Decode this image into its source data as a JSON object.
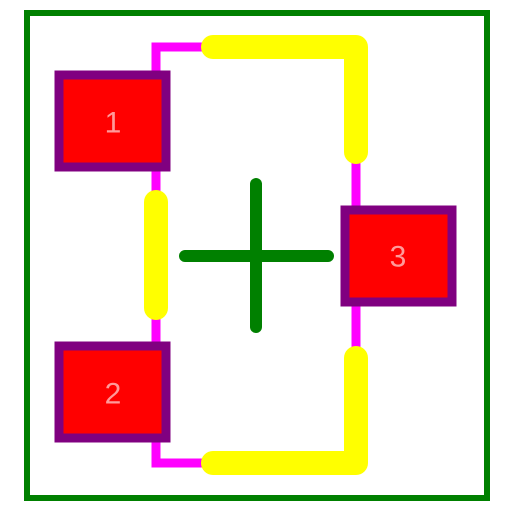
{
  "diagram": {
    "type": "pcb-footprint",
    "pads": [
      {
        "id": "pad-1",
        "label": "1"
      },
      {
        "id": "pad-2",
        "label": "2"
      },
      {
        "id": "pad-3",
        "label": "3"
      }
    ],
    "colors": {
      "board_outline": "#008000",
      "center_cross": "#008000",
      "pad_fill": "#ff0000",
      "pad_border": "#800080",
      "pad_label": "#ff9a9a",
      "silkscreen": "#ffff00",
      "fab_outline": "#ff00ff",
      "background": "#ffffff"
    }
  }
}
